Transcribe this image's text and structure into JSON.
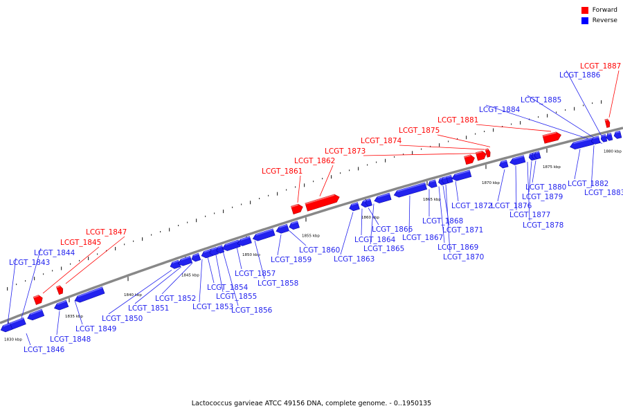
{
  "caption": "Lactococcus garvieae ATCC 49156 DNA, complete genome. - 0..1950135",
  "legend": [
    {
      "label": "Forward",
      "color": "#ff0000"
    },
    {
      "label": "Reverse",
      "color": "#0000ff"
    }
  ],
  "colors": {
    "forward": "#ff0000",
    "reverse": "#2222ee",
    "backbone": "#888888"
  },
  "ticks": [
    "1830 kbp",
    "1835 kbp",
    "1840 kbp",
    "1845 kbp",
    "1850 kbp",
    "1855 kbp",
    "1860 kbp",
    "1865 kbp",
    "1870 kbp",
    "1875 kbp",
    "1880 kbp"
  ],
  "genes": [
    {
      "label": "LCGT_1843",
      "strand": "reverse"
    },
    {
      "label": "LCGT_1844",
      "strand": "reverse"
    },
    {
      "label": "LCGT_1845",
      "strand": "forward"
    },
    {
      "label": "LCGT_1846",
      "strand": "reverse"
    },
    {
      "label": "LCGT_1847",
      "strand": "forward"
    },
    {
      "label": "LCGT_1848",
      "strand": "reverse"
    },
    {
      "label": "LCGT_1849",
      "strand": "reverse"
    },
    {
      "label": "LCGT_1850",
      "strand": "reverse"
    },
    {
      "label": "LCGT_1851",
      "strand": "reverse"
    },
    {
      "label": "LCGT_1852",
      "strand": "reverse"
    },
    {
      "label": "LCGT_1853",
      "strand": "reverse"
    },
    {
      "label": "LCGT_1854",
      "strand": "reverse"
    },
    {
      "label": "LCGT_1855",
      "strand": "reverse"
    },
    {
      "label": "LCGT_1856",
      "strand": "reverse"
    },
    {
      "label": "LCGT_1857",
      "strand": "reverse"
    },
    {
      "label": "LCGT_1858",
      "strand": "reverse"
    },
    {
      "label": "LCGT_1859",
      "strand": "reverse"
    },
    {
      "label": "LCGT_1860",
      "strand": "reverse"
    },
    {
      "label": "LCGT_1861",
      "strand": "forward"
    },
    {
      "label": "LCGT_1862",
      "strand": "forward"
    },
    {
      "label": "LCGT_1863",
      "strand": "reverse"
    },
    {
      "label": "LCGT_1864",
      "strand": "reverse"
    },
    {
      "label": "LCGT_1865",
      "strand": "reverse"
    },
    {
      "label": "LCGT_1866",
      "strand": "reverse"
    },
    {
      "label": "LCGT_1867",
      "strand": "reverse"
    },
    {
      "label": "LCGT_1868",
      "strand": "reverse"
    },
    {
      "label": "LCGT_1869",
      "strand": "reverse"
    },
    {
      "label": "LCGT_1870",
      "strand": "reverse"
    },
    {
      "label": "LCGT_1871",
      "strand": "reverse"
    },
    {
      "label": "LCGT_1872",
      "strand": "reverse"
    },
    {
      "label": "LCGT_1873",
      "strand": "forward"
    },
    {
      "label": "LCGT_1874",
      "strand": "forward"
    },
    {
      "label": "LCGT_1875",
      "strand": "forward"
    },
    {
      "label": "LCGT_1876",
      "strand": "reverse"
    },
    {
      "label": "LCGT_1877",
      "strand": "reverse"
    },
    {
      "label": "LCGT_1878",
      "strand": "reverse"
    },
    {
      "label": "LCGT_1879",
      "strand": "reverse"
    },
    {
      "label": "LCGT_1880",
      "strand": "reverse"
    },
    {
      "label": "LCGT_1881",
      "strand": "forward"
    },
    {
      "label": "LCGT_1882",
      "strand": "reverse"
    },
    {
      "label": "LCGT_1883",
      "strand": "reverse"
    },
    {
      "label": "LCGT_1884",
      "strand": "reverse"
    },
    {
      "label": "LCGT_1885",
      "strand": "reverse"
    },
    {
      "label": "LCGT_1886",
      "strand": "reverse"
    },
    {
      "label": "LCGT_1887",
      "strand": "forward"
    }
  ]
}
